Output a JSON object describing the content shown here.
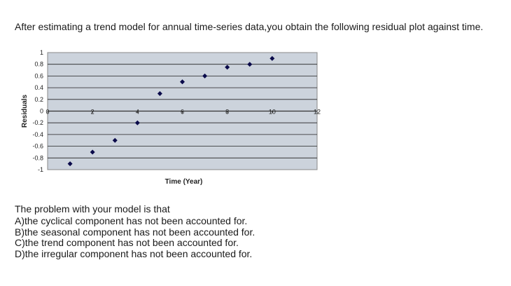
{
  "question_text": "After estimating a trend model for annual time-series data,you obtain the following residual plot against time.",
  "chart_data": {
    "type": "scatter",
    "title": "",
    "xlabel": "Time (Year)",
    "ylabel": "Residuals",
    "xlim": [
      0,
      12
    ],
    "ylim": [
      -1,
      1
    ],
    "x_ticks": [
      "0",
      "2",
      "4",
      "6",
      "8",
      "10",
      "12"
    ],
    "y_ticks": [
      "1",
      "0.8",
      "0.6",
      "0.4",
      "0.2",
      "0",
      "-0.2",
      "-0.4",
      "-0.6",
      "-0.8",
      "-1"
    ],
    "grid": true,
    "plot_background": "#ccd3dc",
    "marker_color": "#0a0a4a",
    "series": [
      {
        "x": [
          1,
          2,
          3,
          4,
          5,
          6,
          7,
          8,
          9,
          10
        ],
        "y": [
          -0.9,
          -0.7,
          -0.5,
          -0.2,
          0.3,
          0.5,
          0.6,
          0.75,
          0.8,
          0.9
        ]
      }
    ]
  },
  "prompt_text": "The problem with your model is that",
  "choices": [
    "A)the cyclical component has not been accounted for.",
    "B)the seasonal component has not been accounted for.",
    "C)the trend component has not been accounted for.",
    "D)the irregular component has not been accounted for."
  ]
}
